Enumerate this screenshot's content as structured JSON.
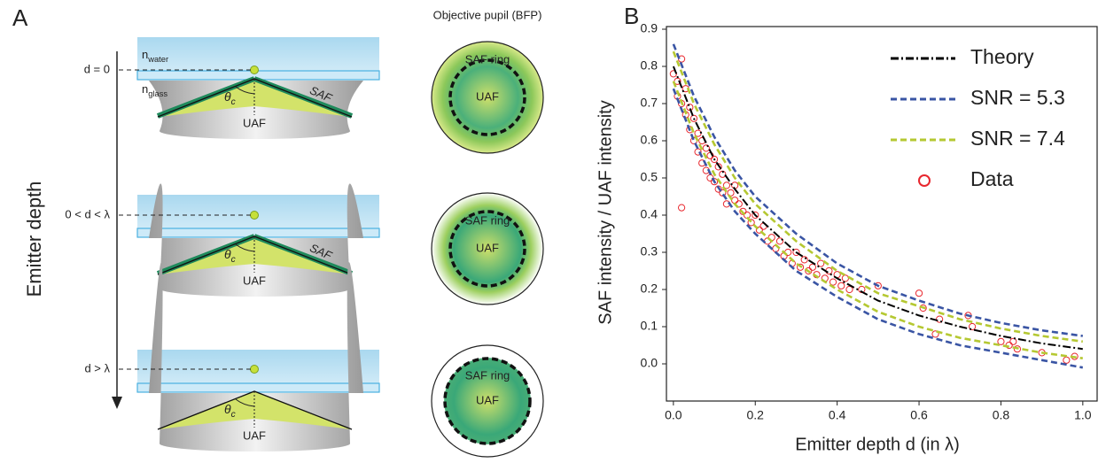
{
  "panel_a": {
    "label": "A",
    "pupil_title": "Objective pupil (BFP)",
    "axis_label": "Emitter depth",
    "media": {
      "water": [
        "n",
        "water"
      ],
      "glass": [
        "n",
        "glass"
      ]
    },
    "rows": [
      {
        "depth": "d = 0",
        "cone": {
          "saf": "SAF",
          "angle": [
            "θ",
            "c"
          ],
          "uaf": "UAF"
        },
        "pupil": {
          "ring": "SAF ring",
          "center": "UAF"
        }
      },
      {
        "depth": "0 < d < λ",
        "cone": {
          "saf": "SAF",
          "angle": [
            "θ",
            "c"
          ],
          "uaf": "UAF"
        },
        "pupil": {
          "ring": "SAF ring",
          "center": "UAF"
        }
      },
      {
        "depth": "d > λ",
        "cone": {
          "angle": [
            "θ",
            "c"
          ],
          "uaf": "UAF"
        },
        "pupil": {
          "ring": "SAF ring",
          "center": "UAF"
        }
      }
    ]
  },
  "chart_data": {
    "type": "scatter",
    "label": "B",
    "x_label": "Emitter depth d (in λ)",
    "y_label": "SAF intensity / UAF intensity",
    "xlim": [
      -0.017,
      1.035
    ],
    "ylim": [
      -0.1,
      0.9
    ],
    "xticks": [
      {
        "value": 0,
        "label": "0.0"
      },
      0.2,
      0.4,
      0.6,
      0.8,
      {
        "value": 1,
        "label": "1.0"
      }
    ],
    "yticks": [
      {
        "value": 0,
        "label": "0.0"
      },
      0.1,
      0.2,
      0.3,
      0.4,
      0.5,
      0.6,
      0.7,
      0.8,
      0.9
    ],
    "grid": false,
    "legend": "upper right",
    "x": [
      0,
      0.05,
      0.1,
      0.15,
      0.2,
      0.3,
      0.4,
      0.5,
      0.6,
      0.7,
      0.8,
      0.9,
      1.0
    ],
    "series": [
      {
        "name": "Theory",
        "color": "#000000",
        "style": "dashdot",
        "values": [
          0.8,
          0.66,
          0.55,
          0.47,
          0.4,
          0.3,
          0.23,
          0.17,
          0.13,
          0.1,
          0.075,
          0.055,
          0.04
        ]
      },
      {
        "name": "SNR = 5.3",
        "color": "#3a55a4",
        "style": "dashed",
        "upper": [
          0.86,
          0.72,
          0.61,
          0.52,
          0.45,
          0.35,
          0.27,
          0.21,
          0.17,
          0.135,
          0.11,
          0.09,
          0.075
        ],
        "lower": [
          0.74,
          0.6,
          0.49,
          0.41,
          0.35,
          0.25,
          0.18,
          0.12,
          0.08,
          0.05,
          0.03,
          0.01,
          -0.01
        ]
      },
      {
        "name": "SNR = 7.4",
        "color": "#b5c832",
        "style": "dashed",
        "upper": [
          0.84,
          0.7,
          0.59,
          0.5,
          0.43,
          0.33,
          0.25,
          0.19,
          0.155,
          0.12,
          0.095,
          0.075,
          0.06
        ],
        "lower": [
          0.76,
          0.62,
          0.51,
          0.43,
          0.37,
          0.27,
          0.2,
          0.14,
          0.1,
          0.07,
          0.05,
          0.03,
          0.015
        ]
      },
      {
        "name": "Data",
        "color": "#e8262d",
        "style": "circle",
        "x": [
          0.0,
          0.01,
          0.01,
          0.02,
          0.02,
          0.02,
          0.03,
          0.03,
          0.04,
          0.04,
          0.05,
          0.05,
          0.06,
          0.06,
          0.07,
          0.07,
          0.08,
          0.08,
          0.09,
          0.09,
          0.1,
          0.1,
          0.11,
          0.11,
          0.12,
          0.12,
          0.13,
          0.13,
          0.14,
          0.15,
          0.15,
          0.16,
          0.17,
          0.18,
          0.19,
          0.2,
          0.21,
          0.22,
          0.23,
          0.24,
          0.25,
          0.26,
          0.27,
          0.28,
          0.29,
          0.3,
          0.31,
          0.32,
          0.33,
          0.34,
          0.35,
          0.36,
          0.37,
          0.38,
          0.39,
          0.4,
          0.41,
          0.42,
          0.43,
          0.46,
          0.5,
          0.6,
          0.61,
          0.64,
          0.65,
          0.72,
          0.73,
          0.8,
          0.82,
          0.83,
          0.84,
          0.9,
          0.96,
          0.98
        ],
        "values": [
          0.78,
          0.72,
          0.76,
          0.7,
          0.82,
          0.42,
          0.74,
          0.67,
          0.69,
          0.63,
          0.66,
          0.6,
          0.62,
          0.57,
          0.6,
          0.54,
          0.58,
          0.52,
          0.56,
          0.5,
          0.55,
          0.49,
          0.53,
          0.47,
          0.51,
          0.46,
          0.48,
          0.43,
          0.46,
          0.44,
          0.48,
          0.43,
          0.41,
          0.4,
          0.38,
          0.4,
          0.36,
          0.37,
          0.33,
          0.34,
          0.31,
          0.33,
          0.29,
          0.3,
          0.27,
          0.3,
          0.26,
          0.28,
          0.25,
          0.26,
          0.24,
          0.27,
          0.23,
          0.25,
          0.22,
          0.24,
          0.21,
          0.23,
          0.2,
          0.2,
          0.21,
          0.19,
          0.15,
          0.08,
          0.12,
          0.13,
          0.1,
          0.06,
          0.05,
          0.06,
          0.04,
          0.03,
          0.01,
          0.02
        ]
      }
    ]
  }
}
